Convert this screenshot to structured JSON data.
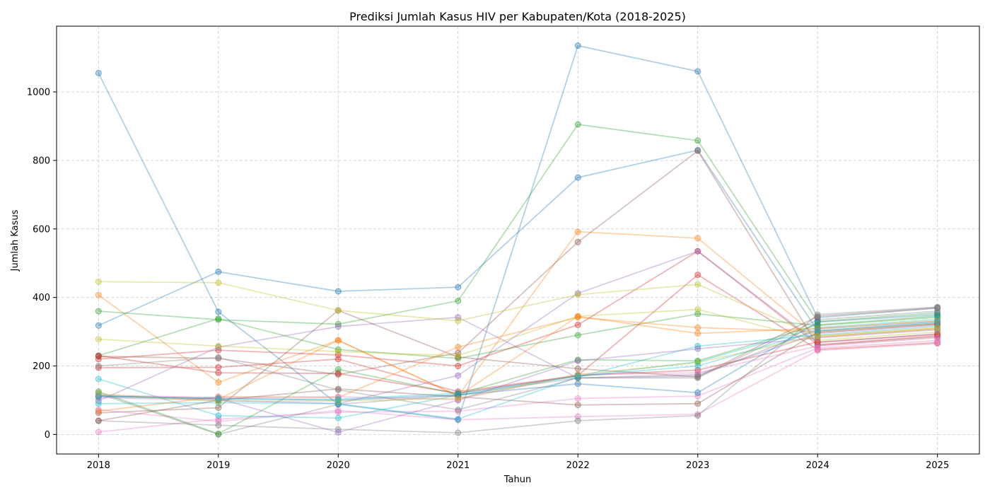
{
  "chart_data": {
    "type": "line",
    "title": "Prediksi Jumlah Kasus HIV per Kabupaten/Kota (2018-2025)",
    "xlabel": "Tahun",
    "ylabel": "Jumlah Kasus",
    "x": [
      2018,
      2019,
      2020,
      2021,
      2022,
      2023,
      2024,
      2025
    ],
    "xlim": [
      2017.65,
      2025.35
    ],
    "ylim": [
      -57,
      1192
    ],
    "yticks": [
      0,
      200,
      400,
      600,
      800,
      1000
    ],
    "grid": true,
    "legend": "none",
    "series": [
      {
        "color": "#1f77b4",
        "values": [
          1055,
          358,
          88,
          43,
          1135,
          1060,
          341,
          369
        ]
      },
      {
        "color": "#1f77b4",
        "values": [
          318,
          475,
          418,
          430,
          750,
          830,
          303,
          325
        ]
      },
      {
        "color": "#ff7f0e",
        "values": [
          407,
          152,
          275,
          112,
          592,
          573,
          285,
          310
        ]
      },
      {
        "color": "#2ca02c",
        "values": [
          360,
          335,
          322,
          390,
          905,
          858,
          330,
          355
        ]
      },
      {
        "color": "#2ca02c",
        "values": [
          230,
          338,
          248,
          222,
          290,
          352,
          318,
          342
        ]
      },
      {
        "color": "#d62728",
        "values": [
          220,
          246,
          232,
          200,
          320,
          535,
          262,
          288
        ]
      },
      {
        "color": "#d62728",
        "values": [
          195,
          196,
          220,
          125,
          172,
          466,
          248,
          268
        ]
      },
      {
        "color": "#9467bd",
        "values": [
          98,
          255,
          315,
          342,
          165,
          175,
          295,
          320
        ]
      },
      {
        "color": "#9467bd",
        "values": [
          108,
          100,
          90,
          172,
          412,
          535,
          268,
          294
        ]
      },
      {
        "color": "#8c564b",
        "values": [
          228,
          222,
          175,
          238,
          562,
          828,
          260,
          285
        ]
      },
      {
        "color": "#8c564b",
        "values": [
          63,
          78,
          362,
          226,
          192,
          168,
          345,
          370
        ]
      },
      {
        "color": "#e377c2",
        "values": [
          7,
          45,
          65,
          68,
          105,
          112,
          252,
          274
        ]
      },
      {
        "color": "#e377c2",
        "values": [
          72,
          38,
          70,
          43,
          52,
          59,
          245,
          265
        ]
      },
      {
        "color": "#7f7f7f",
        "values": [
          120,
          0,
          88,
          115,
          165,
          165,
          335,
          360
        ]
      },
      {
        "color": "#7f7f7f",
        "values": [
          40,
          27,
          15,
          5,
          40,
          55,
          350,
          372
        ]
      },
      {
        "color": "#bcbd22",
        "values": [
          446,
          443,
          362,
          332,
          408,
          438,
          285,
          308
        ]
      },
      {
        "color": "#bcbd22",
        "values": [
          278,
          258,
          242,
          230,
          345,
          365,
          275,
          299
        ]
      },
      {
        "color": "#17becf",
        "values": [
          162,
          55,
          48,
          115,
          170,
          212,
          312,
          336
        ]
      },
      {
        "color": "#17becf",
        "values": [
          90,
          93,
          90,
          45,
          168,
          258,
          290,
          316
        ]
      },
      {
        "color": "#ff7f0e",
        "values": [
          68,
          110,
          108,
          255,
          342,
          312,
          300,
          324
        ]
      },
      {
        "color": "#ff7f0e",
        "values": [
          112,
          103,
          275,
          112,
          345,
          295,
          310,
          332
        ]
      },
      {
        "color": "#2ca02c",
        "values": [
          125,
          2,
          190,
          118,
          218,
          215,
          320,
          346
        ]
      },
      {
        "color": "#d62728",
        "values": [
          230,
          180,
          178,
          120,
          172,
          188,
          270,
          292
        ]
      },
      {
        "color": "#9467bd",
        "values": [
          112,
          105,
          6,
          100,
          215,
          250,
          282,
          306
        ]
      },
      {
        "color": "#8c564b",
        "values": [
          40,
          100,
          133,
          110,
          86,
          90,
          298,
          322
        ]
      },
      {
        "color": "#1f77b4",
        "values": [
          112,
          105,
          100,
          115,
          148,
          122,
          328,
          350
        ]
      },
      {
        "color": "#e377c2",
        "values": [
          115,
          108,
          110,
          102,
          175,
          180,
          258,
          282
        ]
      },
      {
        "color": "#7f7f7f",
        "values": [
          200,
          225,
          130,
          72,
          165,
          170,
          308,
          330
        ]
      },
      {
        "color": "#bcbd22",
        "values": [
          118,
          97,
          98,
          105,
          175,
          210,
          288,
          312
        ]
      },
      {
        "color": "#17becf",
        "values": [
          112,
          104,
          103,
          120,
          170,
          200,
          302,
          328
        ]
      }
    ]
  }
}
